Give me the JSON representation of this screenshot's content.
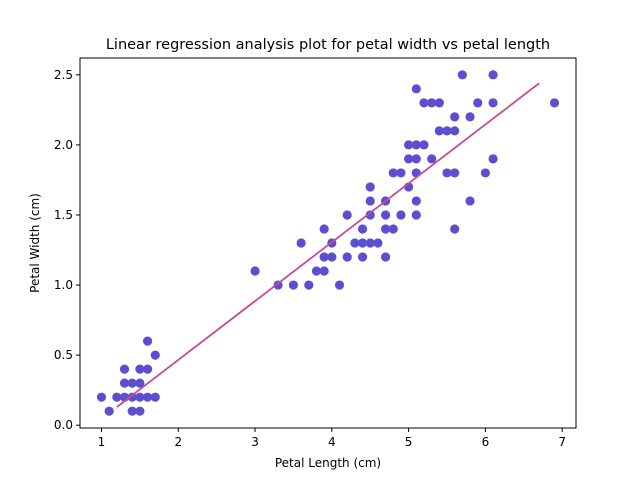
{
  "chart_data": {
    "type": "scatter",
    "title": "Linear regression analysis plot for petal width vs petal length",
    "xlabel": "Petal Length (cm)",
    "ylabel": "Petal Width (cm)",
    "xlim": [
      0.72,
      7.18
    ],
    "ylim": [
      -0.02,
      2.62
    ],
    "x_ticks": [
      "1",
      "2",
      "3",
      "4",
      "5",
      "6",
      "7"
    ],
    "y_ticks": [
      "0.0",
      "0.5",
      "1.0",
      "1.5",
      "2.0",
      "2.5"
    ],
    "grid": false,
    "legend": false,
    "point_color": "#5b4fcf",
    "line_color": "#c94a9a",
    "series": [
      {
        "kind": "scatter",
        "points": [
          [
            1.0,
            0.2
          ],
          [
            1.1,
            0.1
          ],
          [
            1.2,
            0.2
          ],
          [
            1.3,
            0.4
          ],
          [
            1.3,
            0.3
          ],
          [
            1.3,
            0.2
          ],
          [
            1.4,
            0.3
          ],
          [
            1.4,
            0.2
          ],
          [
            1.4,
            0.1
          ],
          [
            1.5,
            0.4
          ],
          [
            1.5,
            0.3
          ],
          [
            1.5,
            0.2
          ],
          [
            1.5,
            0.1
          ],
          [
            1.6,
            0.6
          ],
          [
            1.6,
            0.4
          ],
          [
            1.6,
            0.2
          ],
          [
            1.7,
            0.5
          ],
          [
            1.7,
            0.2
          ],
          [
            3.0,
            1.1
          ],
          [
            3.3,
            1.0
          ],
          [
            3.5,
            1.0
          ],
          [
            3.6,
            1.3
          ],
          [
            3.7,
            1.0
          ],
          [
            3.8,
            1.1
          ],
          [
            3.9,
            1.4
          ],
          [
            3.9,
            1.2
          ],
          [
            3.9,
            1.1
          ],
          [
            4.0,
            1.3
          ],
          [
            4.0,
            1.2
          ],
          [
            4.1,
            1.0
          ],
          [
            4.2,
            1.5
          ],
          [
            4.2,
            1.2
          ],
          [
            4.3,
            1.3
          ],
          [
            4.4,
            1.4
          ],
          [
            4.4,
            1.3
          ],
          [
            4.4,
            1.2
          ],
          [
            4.5,
            1.7
          ],
          [
            4.5,
            1.6
          ],
          [
            4.5,
            1.5
          ],
          [
            4.5,
            1.3
          ],
          [
            4.6,
            1.3
          ],
          [
            4.7,
            1.6
          ],
          [
            4.7,
            1.5
          ],
          [
            4.7,
            1.4
          ],
          [
            4.7,
            1.2
          ],
          [
            4.8,
            1.8
          ],
          [
            4.8,
            1.4
          ],
          [
            4.9,
            1.8
          ],
          [
            4.9,
            1.5
          ],
          [
            5.0,
            2.0
          ],
          [
            5.0,
            1.9
          ],
          [
            5.0,
            1.7
          ],
          [
            5.1,
            2.4
          ],
          [
            5.1,
            2.0
          ],
          [
            5.1,
            1.9
          ],
          [
            5.1,
            1.8
          ],
          [
            5.1,
            1.6
          ],
          [
            5.1,
            1.5
          ],
          [
            5.2,
            2.3
          ],
          [
            5.2,
            2.0
          ],
          [
            5.3,
            2.3
          ],
          [
            5.3,
            1.9
          ],
          [
            5.4,
            2.3
          ],
          [
            5.4,
            2.1
          ],
          [
            5.5,
            2.1
          ],
          [
            5.5,
            1.8
          ],
          [
            5.6,
            2.2
          ],
          [
            5.6,
            2.1
          ],
          [
            5.6,
            1.8
          ],
          [
            5.6,
            1.4
          ],
          [
            5.7,
            2.5
          ],
          [
            5.8,
            2.2
          ],
          [
            5.8,
            1.6
          ],
          [
            5.9,
            2.3
          ],
          [
            6.0,
            1.8
          ],
          [
            6.1,
            2.5
          ],
          [
            6.1,
            2.3
          ],
          [
            6.1,
            1.9
          ],
          [
            6.9,
            2.3
          ]
        ]
      },
      {
        "kind": "line",
        "points": [
          [
            1.2,
            0.13
          ],
          [
            6.7,
            2.44
          ]
        ]
      }
    ]
  }
}
